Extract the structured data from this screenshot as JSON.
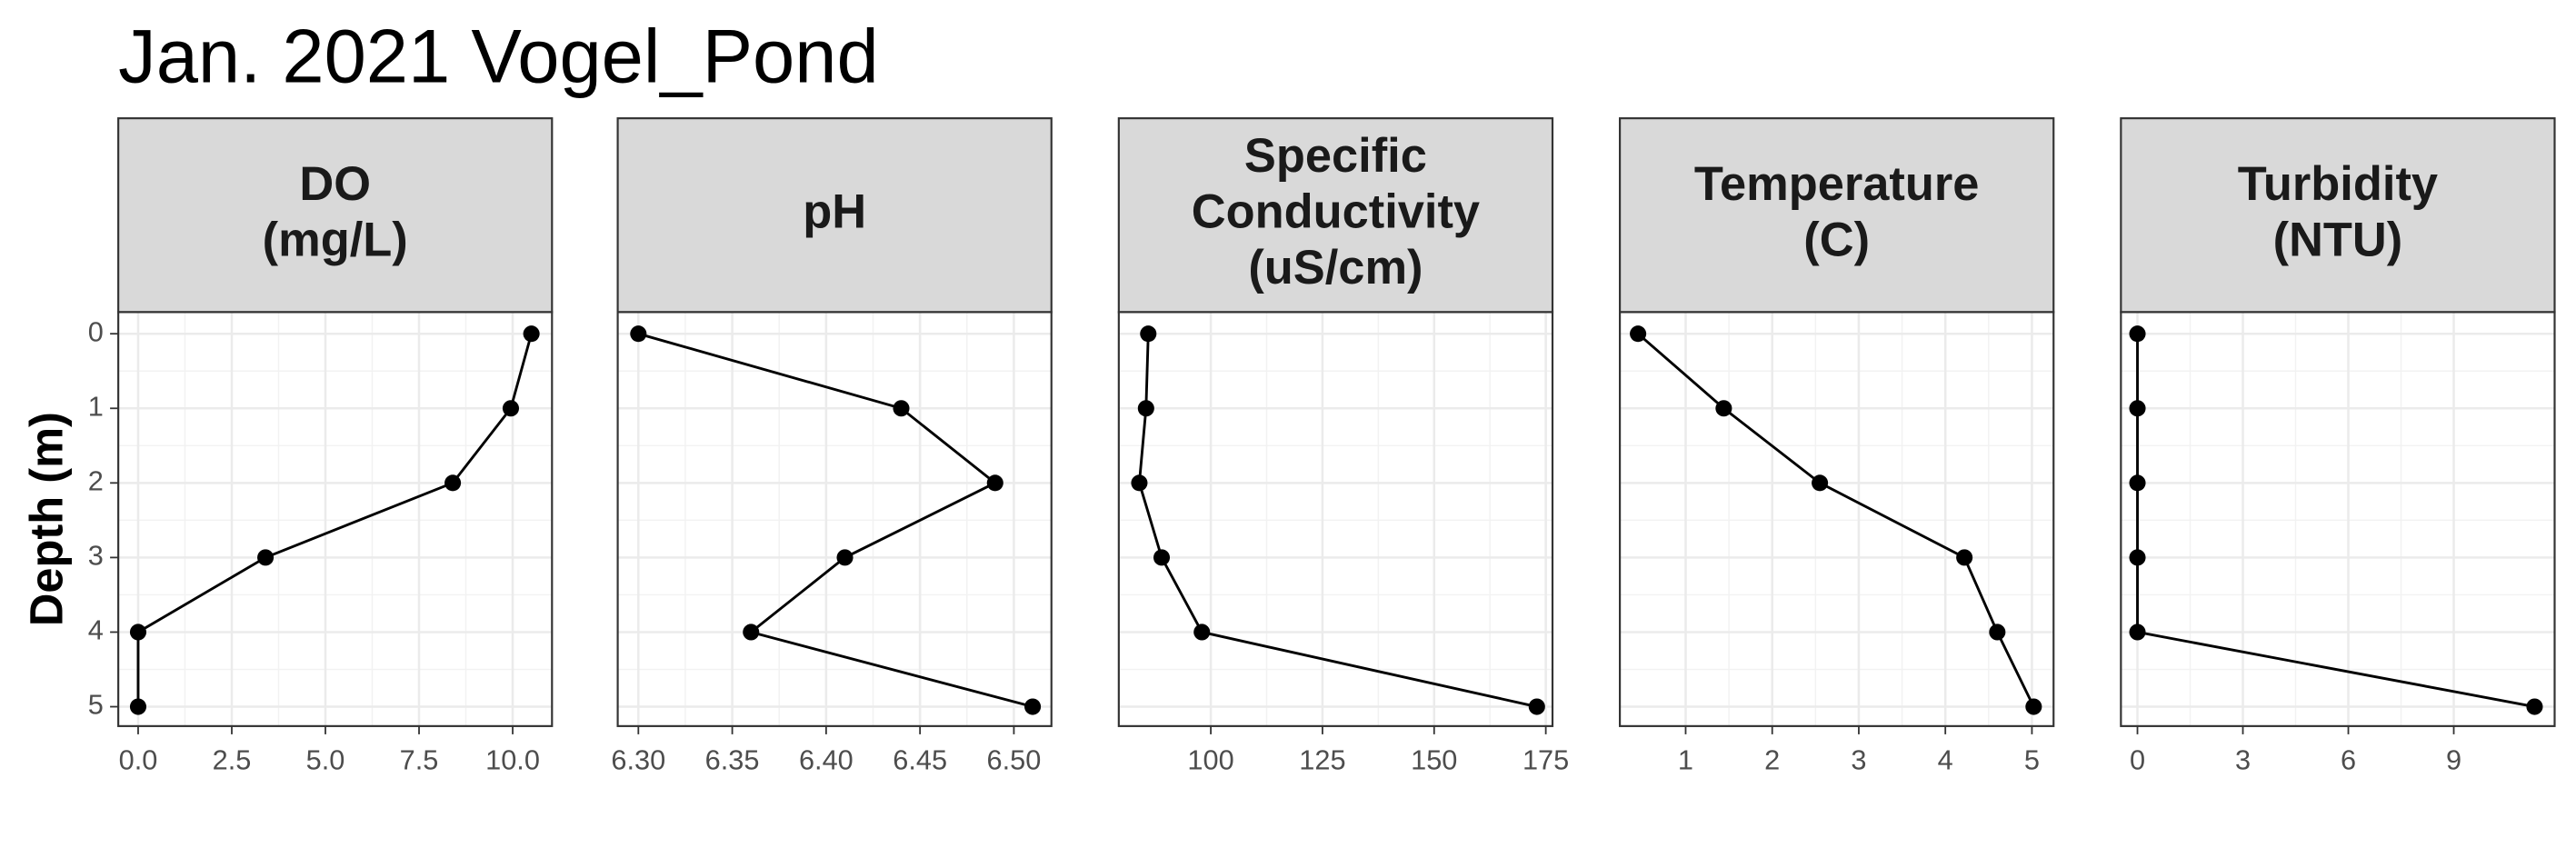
{
  "title": "Jan. 2021 Vogel_Pond",
  "y_label": "Depth (m)",
  "chart_data": [
    {
      "type": "line",
      "title": [
        "DO",
        "(mg/L)"
      ],
      "color": "#000000",
      "x": [
        10.5,
        9.95,
        8.4,
        3.4,
        0.0,
        0.0
      ],
      "y": [
        0,
        1,
        2,
        3,
        4,
        5
      ],
      "xlim": [
        -0.53,
        11.05
      ],
      "xticks": [
        {
          "value": 0,
          "label": "0.0"
        },
        {
          "value": 2.5,
          "label": "2.5"
        },
        {
          "value": 5,
          "label": "5.0"
        },
        {
          "value": 7.5,
          "label": "7.5"
        },
        {
          "value": 10,
          "label": "10.0"
        }
      ],
      "ylim": [
        5.26,
        -0.29
      ],
      "yticks": [
        0,
        1,
        2,
        3,
        4,
        5
      ],
      "grid": true
    },
    {
      "type": "line",
      "title": [
        "pH"
      ],
      "color": "#000000",
      "x": [
        6.3,
        6.44,
        6.49,
        6.41,
        6.36,
        6.51
      ],
      "y": [
        0,
        1,
        2,
        3,
        4,
        5
      ],
      "xlim": [
        6.289,
        6.52
      ],
      "xticks": [
        {
          "value": 6.3,
          "label": "6.30"
        },
        {
          "value": 6.35,
          "label": "6.35"
        },
        {
          "value": 6.4,
          "label": "6.40"
        },
        {
          "value": 6.45,
          "label": "6.45"
        },
        {
          "value": 6.5,
          "label": "6.50"
        }
      ],
      "ylim": [
        5.26,
        -0.29
      ],
      "yticks": [
        0,
        1,
        2,
        3,
        4,
        5
      ],
      "grid": true
    },
    {
      "type": "line",
      "title": [
        "Specific",
        "Conductivity",
        "(uS/cm)"
      ],
      "color": "#000000",
      "x": [
        86,
        85.5,
        84,
        89,
        98,
        173
      ],
      "y": [
        0,
        1,
        2,
        3,
        4,
        5
      ],
      "xlim": [
        79.4,
        176.5
      ],
      "xticks": [
        100,
        125,
        150,
        175
      ],
      "ylim": [
        5.26,
        -0.29
      ],
      "yticks": [
        0,
        1,
        2,
        3,
        4,
        5
      ],
      "grid": true
    },
    {
      "type": "line",
      "title": [
        "Temperature",
        "(C)"
      ],
      "color": "#000000",
      "x": [
        0.45,
        1.44,
        2.55,
        4.22,
        4.6,
        5.02
      ],
      "y": [
        0,
        1,
        2,
        3,
        4,
        5
      ],
      "xlim": [
        0.24,
        5.25
      ],
      "xticks": [
        1,
        2,
        3,
        4,
        5
      ],
      "ylim": [
        5.26,
        -0.29
      ],
      "yticks": [
        0,
        1,
        2,
        3,
        4,
        5
      ],
      "grid": true
    },
    {
      "type": "line",
      "title": [
        "Turbidity",
        "(NTU)"
      ],
      "color": "#000000",
      "x": [
        0,
        0,
        0,
        0,
        0,
        11.3
      ],
      "y": [
        0,
        1,
        2,
        3,
        4,
        5
      ],
      "xlim": [
        -0.47,
        11.87
      ],
      "xticks": [
        0,
        3,
        6,
        9
      ],
      "ylim": [
        5.26,
        -0.29
      ],
      "yticks": [
        0,
        1,
        2,
        3,
        4,
        5
      ],
      "grid": true
    }
  ]
}
